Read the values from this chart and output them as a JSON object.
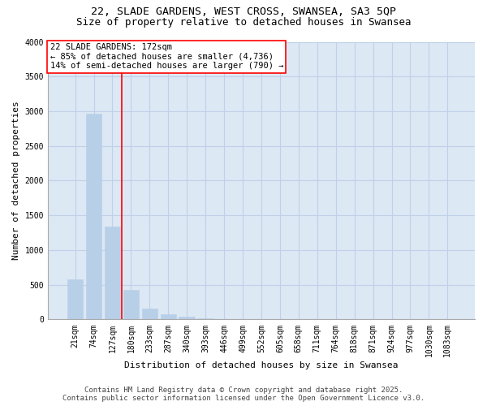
{
  "title_line1": "22, SLADE GARDENS, WEST CROSS, SWANSEA, SA3 5QP",
  "title_line2": "Size of property relative to detached houses in Swansea",
  "xlabel": "Distribution of detached houses by size in Swansea",
  "ylabel": "Number of detached properties",
  "categories": [
    "21sqm",
    "74sqm",
    "127sqm",
    "180sqm",
    "233sqm",
    "287sqm",
    "340sqm",
    "393sqm",
    "446sqm",
    "499sqm",
    "552sqm",
    "605sqm",
    "658sqm",
    "711sqm",
    "764sqm",
    "818sqm",
    "871sqm",
    "924sqm",
    "977sqm",
    "1030sqm",
    "1083sqm"
  ],
  "values": [
    580,
    2970,
    1340,
    430,
    160,
    80,
    45,
    20,
    5,
    2,
    1,
    0,
    0,
    0,
    0,
    0,
    0,
    0,
    0,
    0,
    0
  ],
  "bar_color": "#b8cfe8",
  "bar_edge_color": "#b8cfe8",
  "vline_x": 2.5,
  "vline_color": "red",
  "annotation_text": "22 SLADE GARDENS: 172sqm\n← 85% of detached houses are smaller (4,736)\n14% of semi-detached houses are larger (790) →",
  "annotation_box_color": "red",
  "annotation_facecolor": "white",
  "grid_color": "#c0d0e8",
  "background_color": "#dce8f4",
  "ylim": [
    0,
    4000
  ],
  "yticks": [
    0,
    500,
    1000,
    1500,
    2000,
    2500,
    3000,
    3500,
    4000
  ],
  "footer_line1": "Contains HM Land Registry data © Crown copyright and database right 2025.",
  "footer_line2": "Contains public sector information licensed under the Open Government Licence v3.0.",
  "title_fontsize": 9.5,
  "subtitle_fontsize": 9,
  "axis_label_fontsize": 8,
  "tick_fontsize": 7,
  "annotation_fontsize": 7.5,
  "footer_fontsize": 6.5
}
